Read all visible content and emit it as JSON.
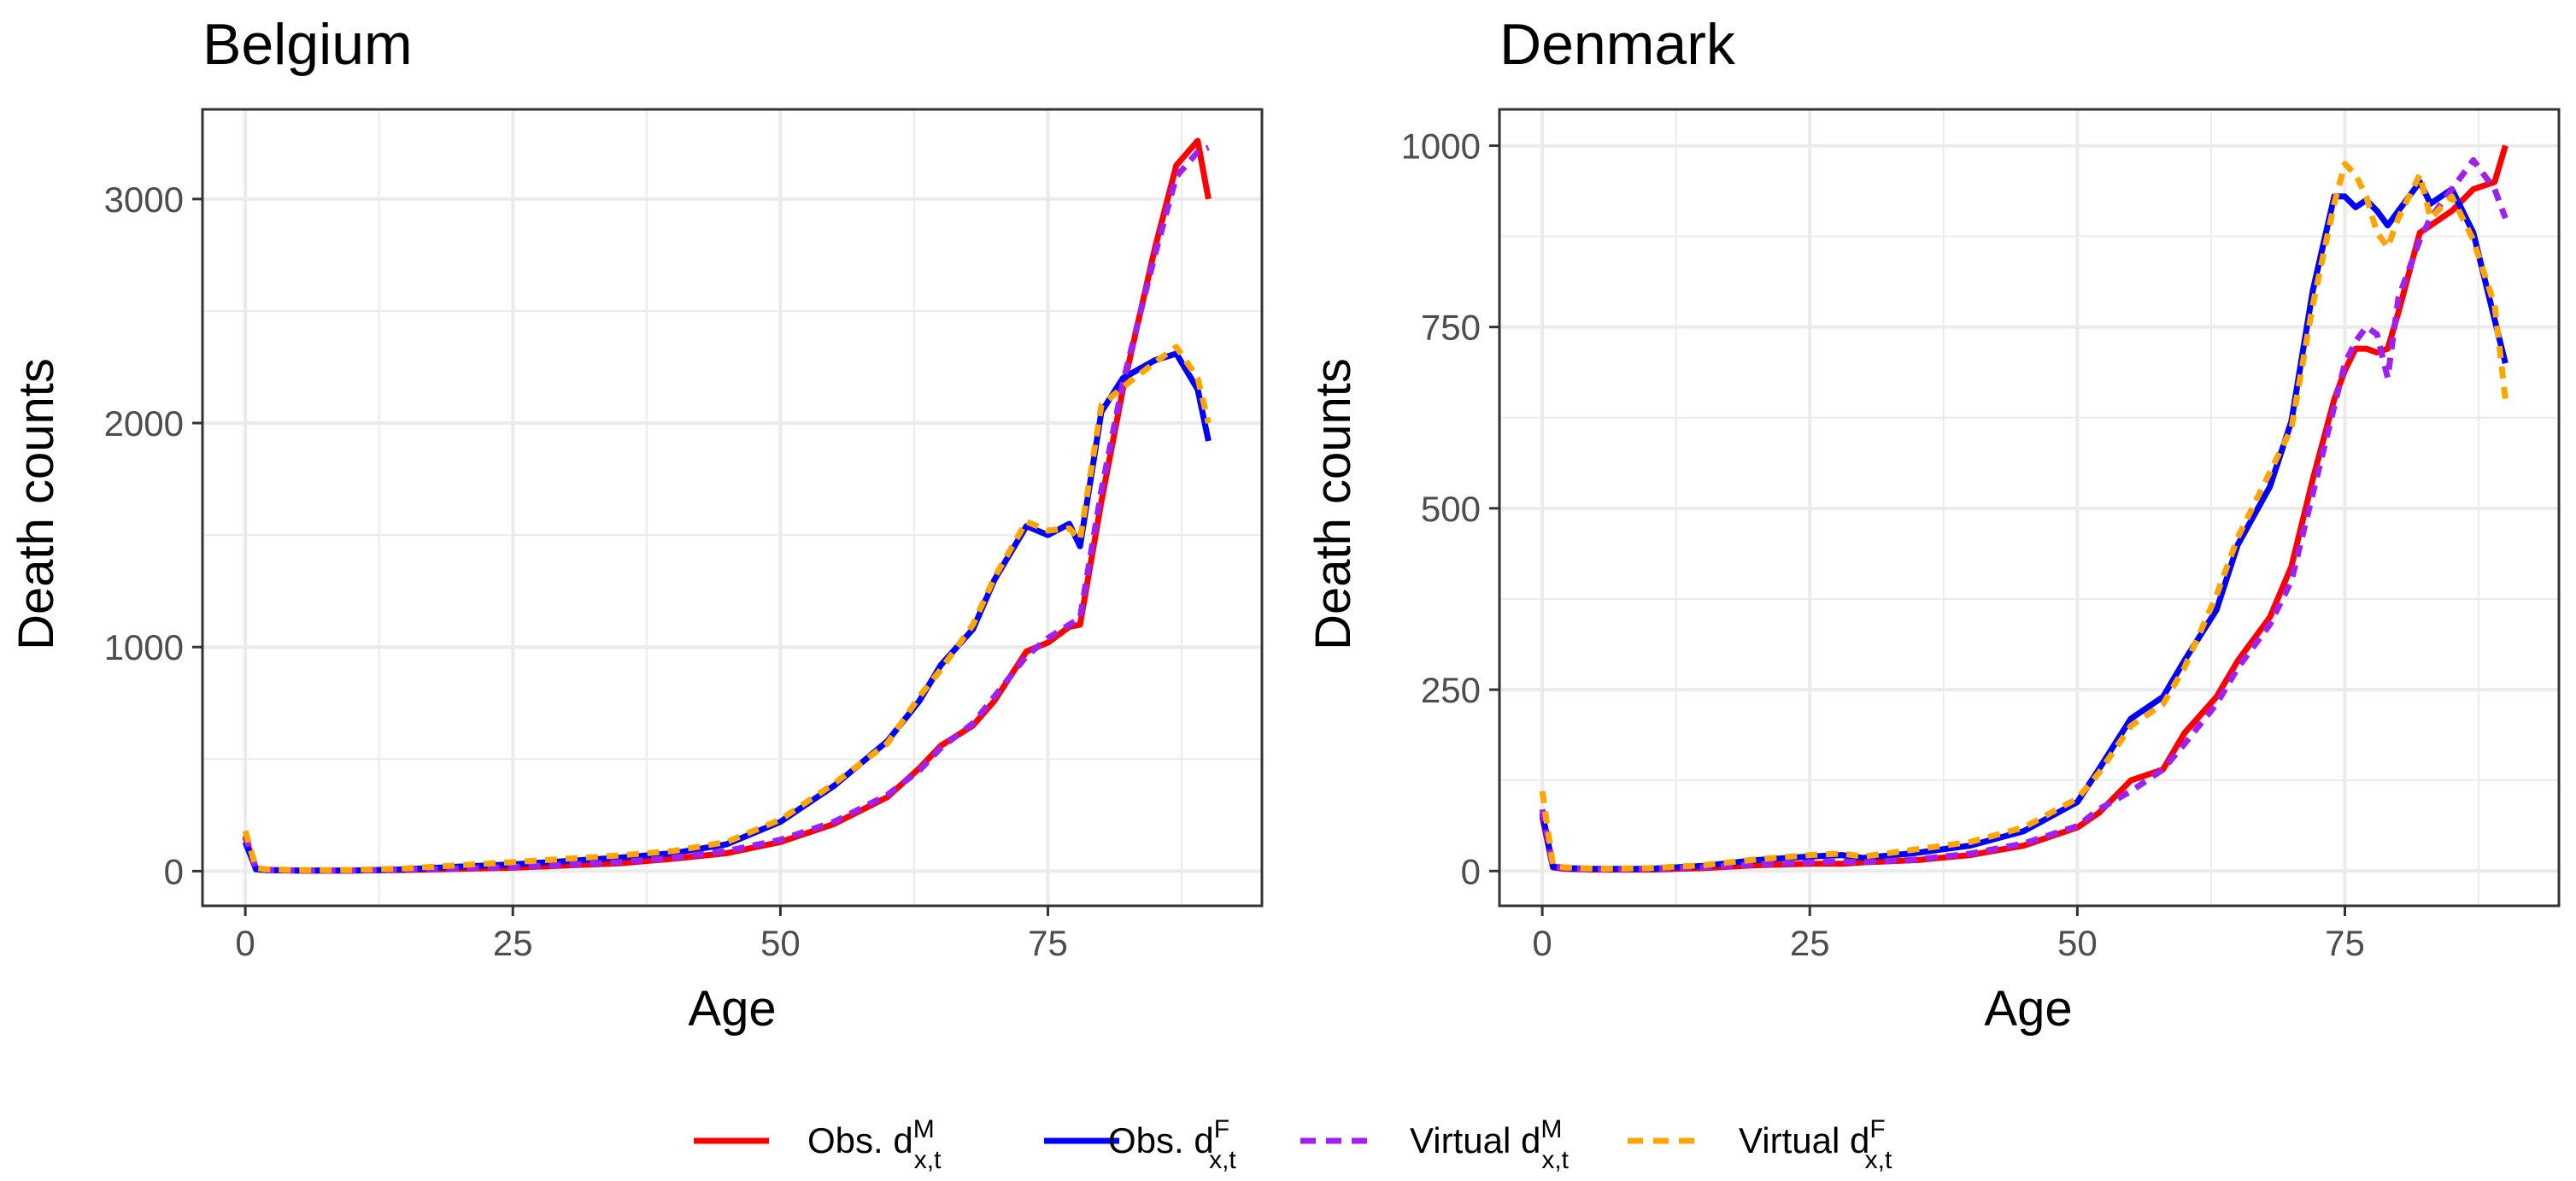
{
  "chart_data": [
    {
      "type": "line",
      "title": "Belgium",
      "xlabel": "Age",
      "ylabel": "Death counts",
      "xlim": [
        -4,
        95
      ],
      "ylim": [
        -155,
        3400
      ],
      "xticks": [
        0,
        25,
        50,
        75
      ],
      "xtick_labels": [
        "0",
        "25",
        "50",
        "75"
      ],
      "yticks": [
        0,
        1000,
        2000,
        3000
      ],
      "ytick_labels": [
        "0",
        "1000",
        "2000",
        "3000"
      ],
      "grid": true,
      "x": [
        0,
        1,
        2,
        5,
        10,
        15,
        20,
        25,
        30,
        35,
        40,
        45,
        50,
        55,
        60,
        63,
        65,
        68,
        70,
        73,
        75,
        77,
        78,
        80,
        82,
        85,
        87,
        89,
        90
      ],
      "series": [
        {
          "name": "Obs. d^M_x,t",
          "values": [
            150,
            10,
            5,
            2,
            2,
            5,
            10,
            15,
            25,
            35,
            55,
            80,
            130,
            210,
            330,
            460,
            560,
            650,
            760,
            980,
            1020,
            1090,
            1100,
            1650,
            2150,
            2780,
            3150,
            3260,
            3000
          ]
        },
        {
          "name": "Obs. d^F_x,t",
          "values": [
            130,
            8,
            4,
            2,
            2,
            8,
            20,
            30,
            45,
            60,
            80,
            120,
            220,
            380,
            580,
            760,
            920,
            1080,
            1300,
            1540,
            1500,
            1550,
            1450,
            2050,
            2200,
            2280,
            2310,
            2150,
            1920
          ]
        },
        {
          "name": "Virtual d^M_x,t",
          "values": [
            160,
            12,
            6,
            3,
            3,
            6,
            12,
            18,
            28,
            40,
            60,
            90,
            140,
            220,
            340,
            450,
            550,
            660,
            780,
            960,
            1040,
            1100,
            1130,
            1700,
            2180,
            2750,
            3100,
            3210,
            3230
          ]
        },
        {
          "name": "Virtual d^F_x,t",
          "values": [
            180,
            14,
            8,
            4,
            5,
            12,
            26,
            40,
            55,
            70,
            90,
            130,
            230,
            390,
            570,
            780,
            900,
            1100,
            1310,
            1560,
            1520,
            1530,
            1480,
            2080,
            2160,
            2270,
            2340,
            2200,
            2000
          ]
        }
      ]
    },
    {
      "type": "line",
      "title": "Denmark",
      "xlabel": "Age",
      "ylabel": "Death counts",
      "xlim": [
        -4,
        95
      ],
      "ylim": [
        -48,
        1050
      ],
      "xticks": [
        0,
        25,
        50,
        75
      ],
      "xtick_labels": [
        "0",
        "25",
        "50",
        "75"
      ],
      "yticks": [
        0,
        250,
        500,
        750,
        1000
      ],
      "ytick_labels": [
        "0",
        "250",
        "500",
        "750",
        "1000"
      ],
      "grid": true,
      "x": [
        0,
        1,
        2,
        5,
        10,
        15,
        20,
        25,
        28,
        30,
        35,
        40,
        45,
        50,
        52,
        55,
        58,
        60,
        63,
        65,
        68,
        70,
        72,
        74,
        75,
        76,
        77,
        78,
        79,
        80,
        82,
        83,
        85,
        87,
        89,
        90
      ],
      "series": [
        {
          "name": "Obs. d^M_x,t",
          "values": [
            75,
            5,
            3,
            2,
            2,
            4,
            8,
            10,
            10,
            12,
            15,
            22,
            35,
            60,
            80,
            125,
            140,
            190,
            240,
            290,
            350,
            420,
            540,
            650,
            690,
            720,
            720,
            715,
            720,
            770,
            880,
            890,
            910,
            940,
            950,
            1000
          ]
        },
        {
          "name": "Obs. d^F_x,t",
          "values": [
            80,
            6,
            4,
            3,
            3,
            7,
            15,
            20,
            22,
            18,
            25,
            35,
            55,
            95,
            140,
            210,
            240,
            290,
            360,
            450,
            530,
            620,
            800,
            930,
            930,
            915,
            925,
            910,
            890,
            910,
            950,
            920,
            940,
            880,
            760,
            700
          ]
        },
        {
          "name": "Virtual d^M_x,t",
          "values": [
            85,
            7,
            4,
            2,
            3,
            5,
            9,
            12,
            13,
            12,
            16,
            24,
            38,
            62,
            85,
            110,
            140,
            175,
            230,
            280,
            340,
            400,
            520,
            640,
            700,
            730,
            750,
            740,
            680,
            790,
            870,
            900,
            940,
            980,
            940,
            900
          ]
        },
        {
          "name": "Virtual d^F_x,t",
          "values": [
            110,
            8,
            5,
            3,
            4,
            8,
            16,
            22,
            24,
            20,
            30,
            40,
            60,
            100,
            135,
            200,
            230,
            280,
            380,
            460,
            550,
            610,
            780,
            920,
            975,
            960,
            930,
            880,
            860,
            900,
            960,
            900,
            930,
            870,
            780,
            650
          ]
        }
      ]
    }
  ],
  "legend": {
    "placement": "bottom",
    "items": [
      {
        "prefix": "Obs. d",
        "sup": "M",
        "sub": "x,t",
        "color": "#ff0000",
        "dashed": false
      },
      {
        "prefix": "Obs. d",
        "sup": "F",
        "sub": "x,t",
        "color": "#0000ff",
        "dashed": false
      },
      {
        "prefix": "Virtual d",
        "sup": "M",
        "sub": "x,t",
        "color": "#a020f0",
        "dashed": true
      },
      {
        "prefix": "Virtual d",
        "sup": "F",
        "sub": "x,t",
        "color": "#ffa500",
        "dashed": true
      }
    ]
  }
}
